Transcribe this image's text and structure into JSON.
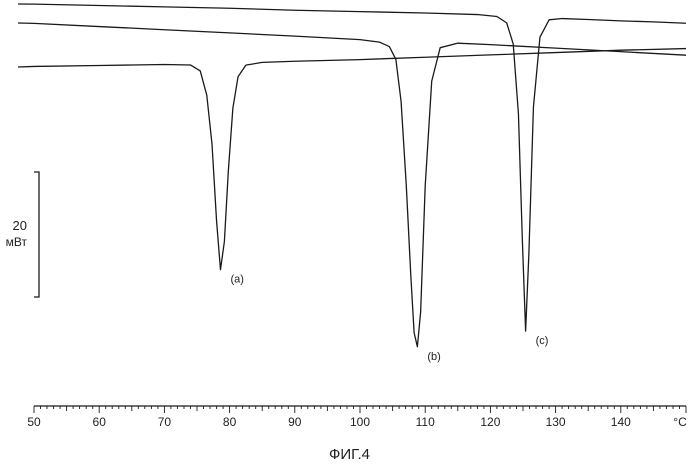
{
  "figure_caption": "ФИГ.4",
  "chart_data": {
    "type": "line",
    "xlabel": "",
    "x_unit": "°C",
    "xlim": [
      50,
      150
    ],
    "x_major_ticks": [
      50,
      60,
      70,
      80,
      90,
      100,
      110,
      120,
      130,
      140
    ],
    "x_tick_labels": [
      "50",
      "60",
      "70",
      "80",
      "90",
      "100",
      "110",
      "120",
      "130",
      "140"
    ],
    "scale_bar": {
      "value": "20",
      "unit": "мВт"
    },
    "grid": false,
    "series": [
      {
        "name": "(a)",
        "x": [
          50,
          60,
          65,
          70,
          74,
          75.5,
          76.5,
          77.3,
          78,
          78.6,
          79.2,
          79.8,
          80.5,
          81.3,
          82.5,
          85,
          90,
          100,
          110,
          120,
          130,
          140,
          150
        ],
        "y": [
          0,
          0.2,
          0.3,
          0.4,
          0.6,
          1.5,
          5,
          12,
          23,
          30,
          26,
          16,
          7,
          2.5,
          0.9,
          0.6,
          0.6,
          0.7,
          0.7,
          0.7,
          0.7,
          0.7,
          0.8
        ]
      },
      {
        "name": "(b)",
        "x": [
          50,
          60,
          70,
          80,
          90,
          100,
          103,
          104.5,
          105.5,
          106.3,
          107.1,
          107.8,
          108.3,
          108.8,
          109.3,
          110,
          111,
          112.3,
          115,
          120,
          130,
          140,
          150
        ],
        "y": [
          0,
          0.25,
          0.5,
          0.75,
          1,
          1.3,
          1.6,
          2.2,
          4,
          10,
          22,
          35,
          43,
          45,
          40,
          22,
          7,
          2.2,
          1.5,
          1.6,
          1.9,
          2.2,
          2.5
        ]
      },
      {
        "name": "(c)",
        "x": [
          50,
          60,
          70,
          80,
          90,
          100,
          110,
          118,
          121,
          122.5,
          123.5,
          124.3,
          124.9,
          125.4,
          125.9,
          126.6,
          127.6,
          129,
          131,
          135,
          140,
          145,
          150
        ],
        "y": [
          0,
          0.1,
          0.2,
          0.3,
          0.5,
          0.6,
          0.7,
          0.85,
          1.1,
          2,
          5,
          15,
          33,
          46,
          35,
          14,
          4,
          1.5,
          1.3,
          1.4,
          1.55,
          1.65,
          1.8
        ]
      }
    ],
    "point_labels": [
      "(a)",
      "(b)",
      "(c)"
    ]
  }
}
